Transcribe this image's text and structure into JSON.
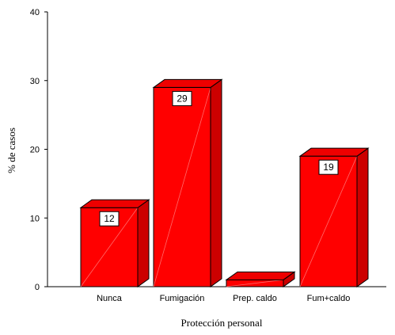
{
  "chart_data": {
    "type": "bar",
    "style": "3d",
    "categories": [
      "Nunca",
      "Fumigación",
      "Prep. caldo",
      "Fum+caldo"
    ],
    "values": [
      11.5,
      29,
      1,
      19
    ],
    "data_labels": [
      "12",
      "29",
      "",
      "19"
    ],
    "xlabel": "Protección personal",
    "ylabel": "% de casos",
    "ylim": [
      0,
      40
    ],
    "yticks": [
      0,
      10,
      20,
      30,
      40
    ],
    "grid": false,
    "bar_color": "#ff0000",
    "bar_side_color": "#cc0000",
    "bar_top_color": "#ee0000"
  }
}
